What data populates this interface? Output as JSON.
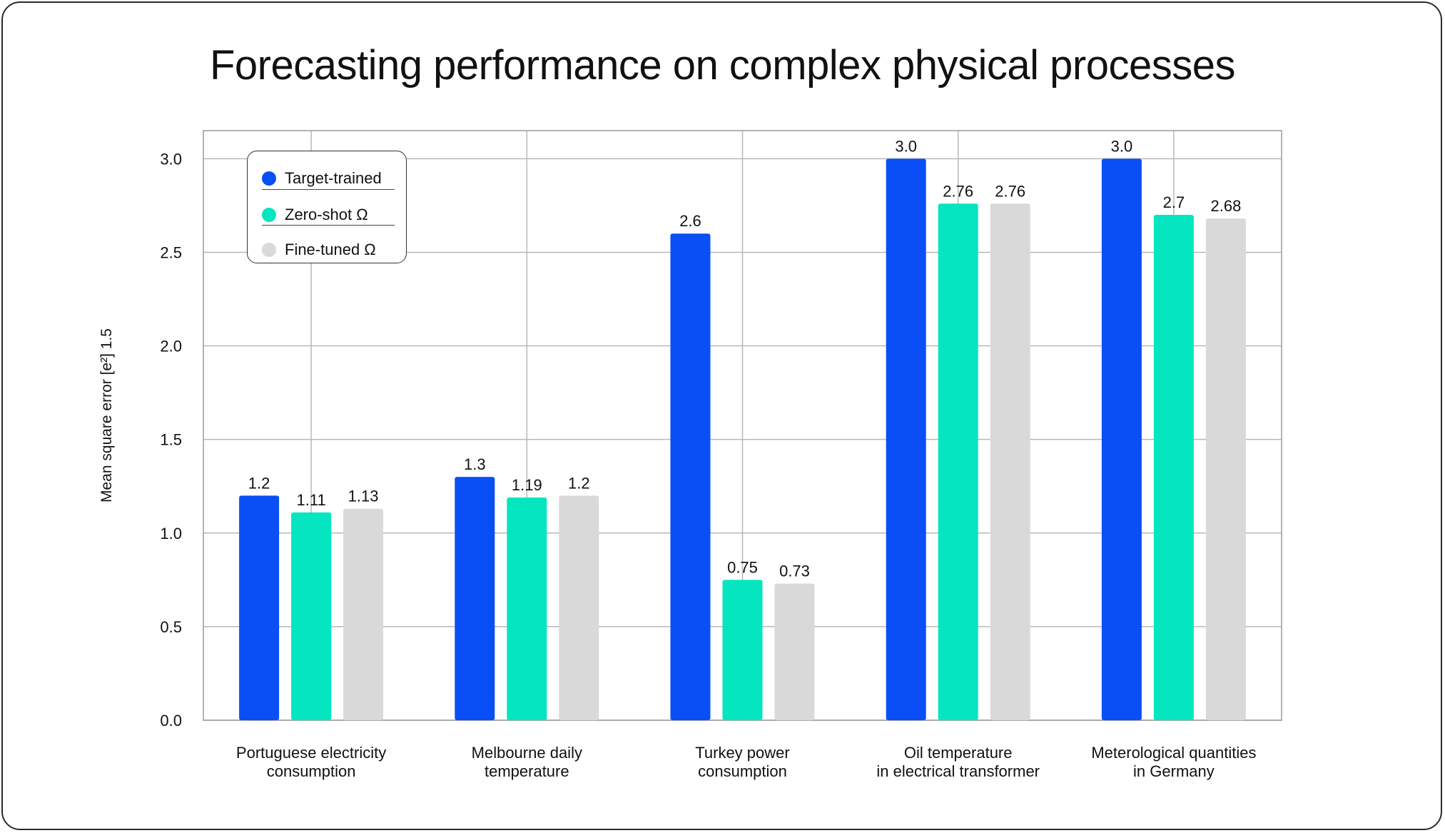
{
  "chart_data": {
    "type": "bar",
    "title": "Forecasting performance on complex physical processes",
    "ylabel": "Mean square error [e²] 1.5",
    "xlabel": "",
    "ylim": [
      0,
      3.15
    ],
    "yticks": [
      "0.0",
      "0.5",
      "1.0",
      "1.5",
      "2.0",
      "2.5",
      "3.0"
    ],
    "ytick_values": [
      0,
      0.5,
      1.0,
      1.5,
      2.0,
      2.5,
      3.0
    ],
    "grid": true,
    "legend_placement": "top-left",
    "categories": [
      [
        "Portuguese electricity",
        "consumption"
      ],
      [
        "Melbourne daily",
        "temperature"
      ],
      [
        "Turkey power",
        "consumption"
      ],
      [
        "Oil temperature",
        "in electrical transformer"
      ],
      [
        "Meterological quantities",
        "in Germany"
      ]
    ],
    "series": [
      {
        "name": "Target-trained",
        "color": "#0a4ef5",
        "values": [
          1.2,
          1.3,
          2.6,
          3.0,
          3.0
        ],
        "labels": [
          "1.2",
          "1.3",
          "2.6",
          "3.0",
          "3.0"
        ]
      },
      {
        "name": "Zero-shot Ω",
        "color": "#05e6c0",
        "values": [
          1.11,
          1.19,
          0.75,
          2.76,
          2.7
        ],
        "labels": [
          "1.11",
          "1.19",
          "0.75",
          "2.76",
          "2.7"
        ]
      },
      {
        "name": "Fine-tuned Ω",
        "color": "#d9d9d9",
        "values": [
          1.13,
          1.2,
          0.73,
          2.76,
          2.68
        ],
        "labels": [
          "1.13",
          "1.2",
          "0.73",
          "2.76",
          "2.68"
        ]
      }
    ]
  }
}
